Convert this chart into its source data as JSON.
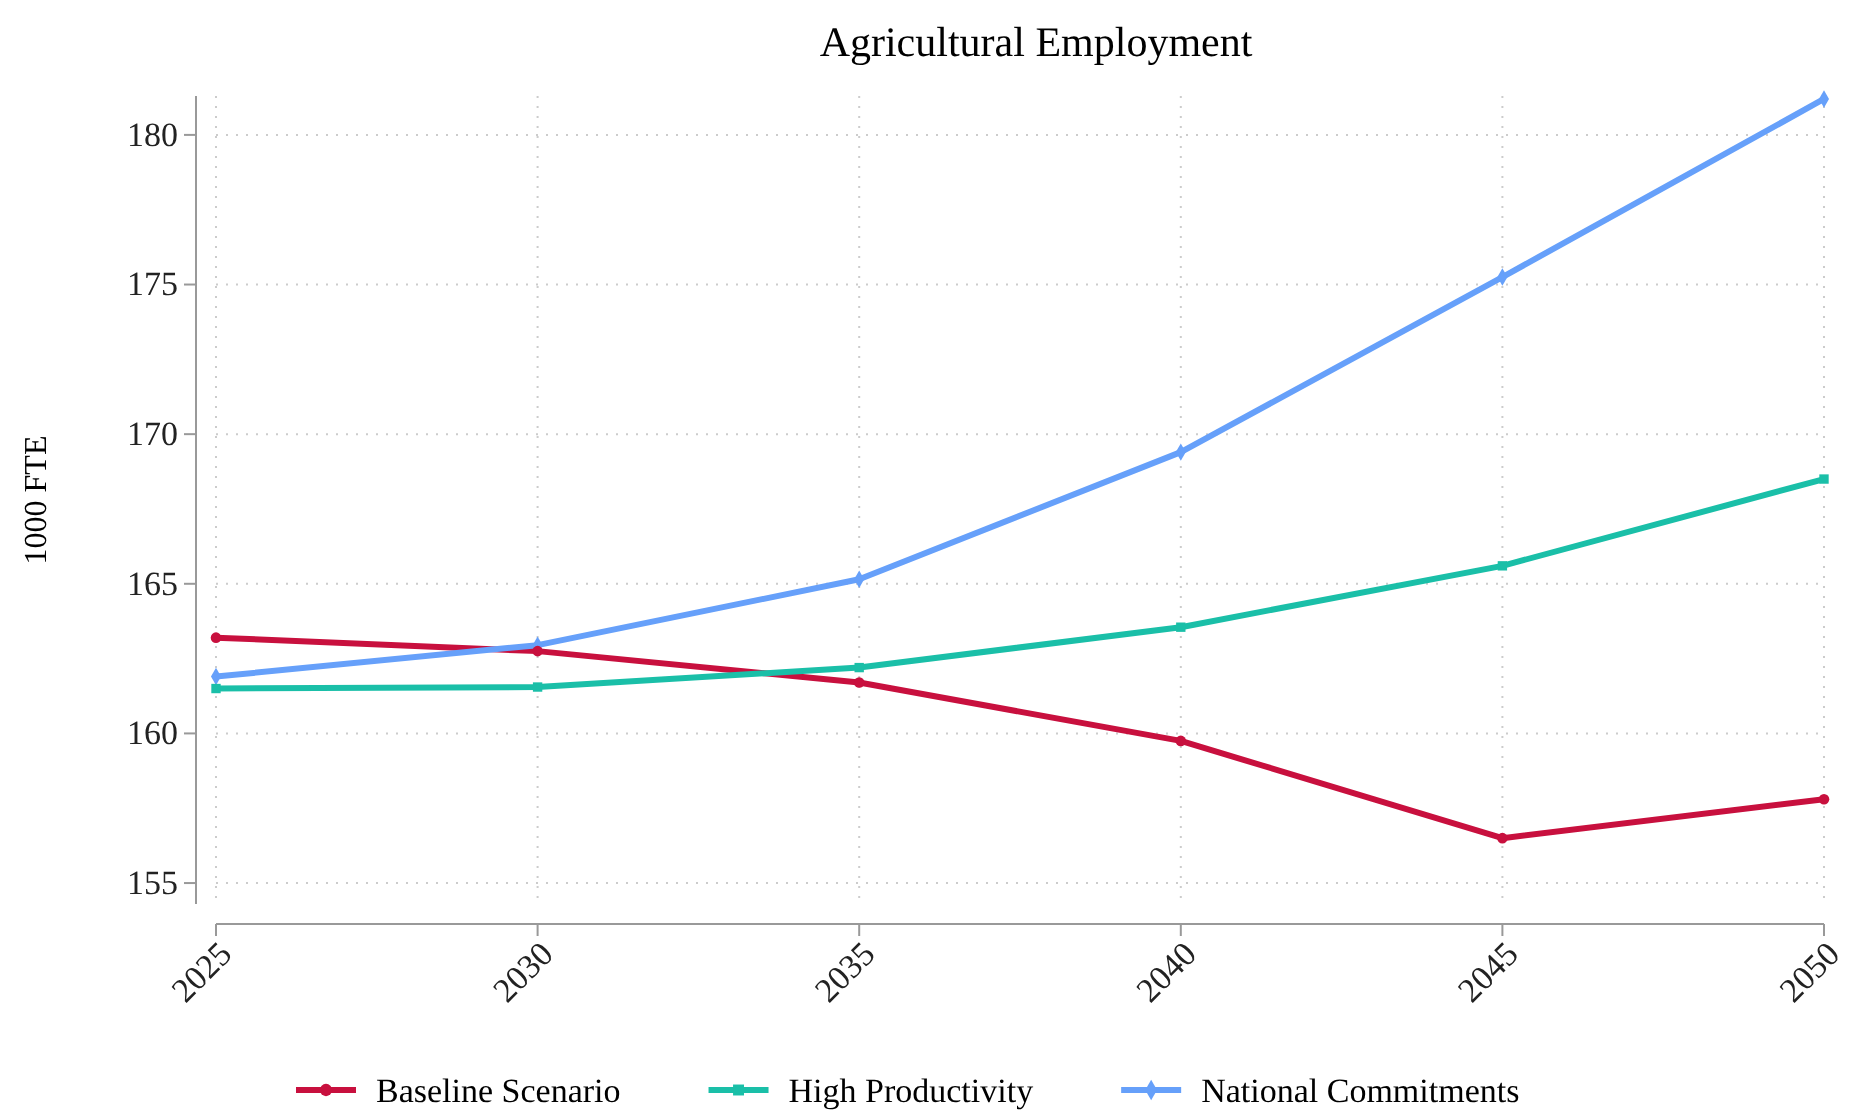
{
  "chart_data": {
    "type": "line",
    "title": "Agricultural Employment",
    "ylabel": "1000 FTE",
    "x": [
      2025,
      2030,
      2035,
      2040,
      2045,
      2050
    ],
    "xlim": [
      2025,
      2050
    ],
    "xticks": [
      2025,
      2030,
      2035,
      2040,
      2045,
      2050
    ],
    "ylim": [
      154.3,
      181.3
    ],
    "yticks": [
      155,
      160,
      165,
      170,
      175,
      180
    ],
    "grid": true,
    "legend": "bottom",
    "line_style": "solid",
    "series": [
      {
        "name": "Baseline Scenario",
        "color": "#c8103e",
        "marker": "circle",
        "values": [
          163.2,
          162.75,
          161.7,
          159.75,
          156.5,
          157.8
        ]
      },
      {
        "name": "High Productivity",
        "color": "#1abfa8",
        "marker": "square",
        "values": [
          161.5,
          161.55,
          162.2,
          163.55,
          165.6,
          168.5
        ]
      },
      {
        "name": "National Commitments",
        "color": "#66a0fa",
        "marker": "diamond",
        "values": [
          161.9,
          162.95,
          165.15,
          169.4,
          175.25,
          181.2
        ]
      }
    ]
  }
}
